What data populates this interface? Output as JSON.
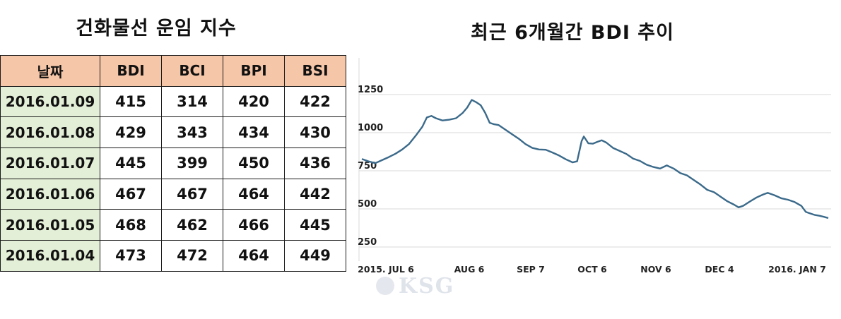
{
  "titles": {
    "table_title": "건화물선 운임 지수",
    "chart_title": "최근 6개월간 BDI 추이"
  },
  "table": {
    "headers": [
      "날짜",
      "BDI",
      "BCI",
      "BPI",
      "BSI"
    ],
    "rows": [
      [
        "2016.01.09",
        "415",
        "314",
        "420",
        "422"
      ],
      [
        "2016.01.08",
        "429",
        "343",
        "434",
        "430"
      ],
      [
        "2016.01.07",
        "445",
        "399",
        "450",
        "436"
      ],
      [
        "2016.01.06",
        "467",
        "467",
        "464",
        "442"
      ],
      [
        "2016.01.05",
        "468",
        "462",
        "466",
        "445"
      ],
      [
        "2016.01.04",
        "473",
        "472",
        "464",
        "449"
      ]
    ]
  },
  "colors": {
    "header_bg": "#f6c6a8",
    "date_bg": "#e3efd7",
    "line": "#3b6a8a"
  },
  "logo": {
    "text": "KSG"
  },
  "chart_data": {
    "type": "line",
    "title": "최근 6개월간 BDI 추이",
    "xlabel": "",
    "ylabel": "",
    "ylim": [
      250,
      1250
    ],
    "yticks": [
      "1250",
      "1000",
      "750",
      "500",
      "250"
    ],
    "xticks": [
      "2015. JUL 6",
      "AUG 6",
      "SEP 7",
      "OCT 6",
      "NOV 6",
      "DEC 4",
      "2016. JAN 7"
    ],
    "grid": true,
    "series": [
      {
        "values": [
          [
            0,
            828
          ],
          [
            3,
            812
          ],
          [
            6,
            800
          ],
          [
            9,
            820
          ],
          [
            12,
            840
          ],
          [
            15,
            862
          ],
          [
            18,
            890
          ],
          [
            21,
            925
          ],
          [
            24,
            980
          ],
          [
            27,
            1040
          ],
          [
            29,
            1100
          ],
          [
            31,
            1110
          ],
          [
            33,
            1095
          ],
          [
            36,
            1080
          ],
          [
            39,
            1085
          ],
          [
            42,
            1095
          ],
          [
            45,
            1130
          ],
          [
            47,
            1165
          ],
          [
            49,
            1215
          ],
          [
            51,
            1200
          ],
          [
            53,
            1180
          ],
          [
            55,
            1130
          ],
          [
            57,
            1065
          ],
          [
            59,
            1055
          ],
          [
            61,
            1050
          ],
          [
            64,
            1020
          ],
          [
            67,
            990
          ],
          [
            70,
            960
          ],
          [
            73,
            925
          ],
          [
            76,
            900
          ],
          [
            79,
            890
          ],
          [
            82,
            888
          ],
          [
            85,
            870
          ],
          [
            88,
            850
          ],
          [
            91,
            825
          ],
          [
            94,
            805
          ],
          [
            96,
            812
          ],
          [
            98,
            945
          ],
          [
            99,
            975
          ],
          [
            101,
            930
          ],
          [
            103,
            928
          ],
          [
            105,
            940
          ],
          [
            107,
            950
          ],
          [
            109,
            935
          ],
          [
            112,
            900
          ],
          [
            115,
            880
          ],
          [
            118,
            860
          ],
          [
            121,
            830
          ],
          [
            124,
            815
          ],
          [
            127,
            790
          ],
          [
            130,
            775
          ],
          [
            133,
            765
          ],
          [
            136,
            785
          ],
          [
            139,
            765
          ],
          [
            142,
            735
          ],
          [
            145,
            720
          ],
          [
            148,
            690
          ],
          [
            151,
            660
          ],
          [
            154,
            625
          ],
          [
            157,
            610
          ],
          [
            160,
            580
          ],
          [
            163,
            550
          ],
          [
            166,
            528
          ],
          [
            168,
            510
          ],
          [
            170,
            520
          ],
          [
            173,
            548
          ],
          [
            176,
            575
          ],
          [
            179,
            595
          ],
          [
            181,
            605
          ],
          [
            184,
            590
          ],
          [
            187,
            570
          ],
          [
            190,
            560
          ],
          [
            193,
            545
          ],
          [
            196,
            520
          ],
          [
            198,
            480
          ],
          [
            200,
            470
          ],
          [
            202,
            460
          ],
          [
            204,
            455
          ],
          [
            206,
            448
          ],
          [
            208,
            440
          ]
        ]
      }
    ]
  }
}
